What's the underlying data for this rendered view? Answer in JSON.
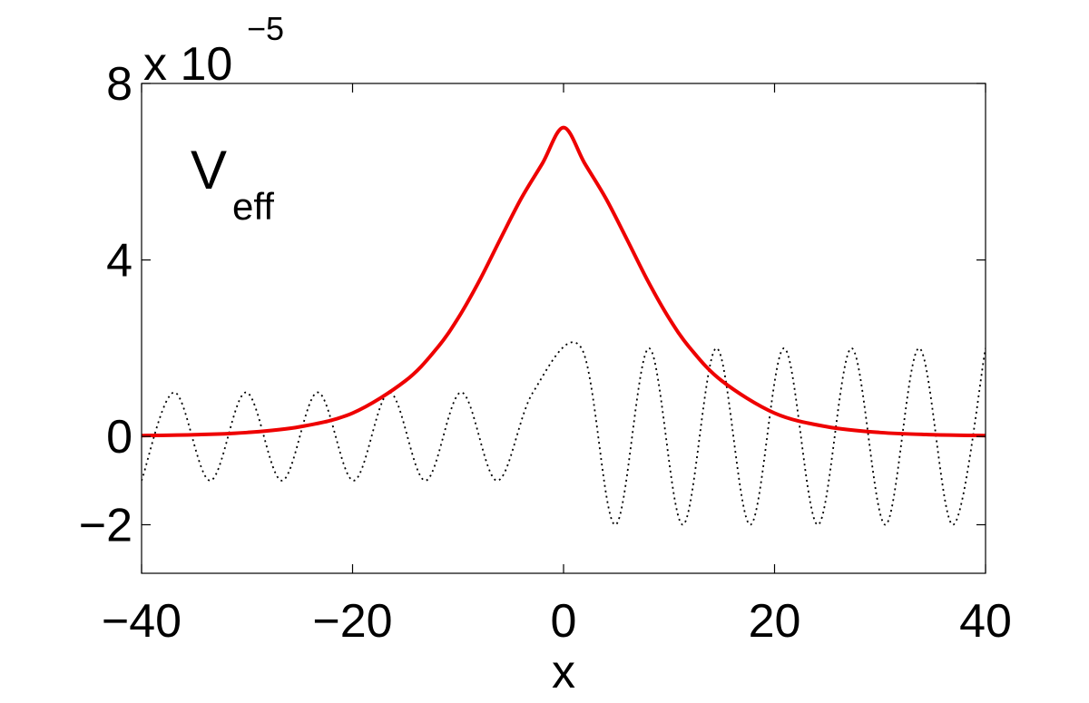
{
  "chart_data": {
    "type": "line",
    "xlabel": "x",
    "ylabel": "",
    "title": "",
    "y_exponent": {
      "base": "x 10",
      "power": "−5"
    },
    "xlim": [
      -40,
      40
    ],
    "ylim": [
      -3.1,
      8
    ],
    "x_ticks": [
      {
        "value": -40,
        "label": "−40"
      },
      {
        "value": -20,
        "label": "−20"
      },
      {
        "value": 0,
        "label": "0"
      },
      {
        "value": 20,
        "label": "20"
      },
      {
        "value": 40,
        "label": "40"
      }
    ],
    "y_ticks": [
      {
        "value": -2,
        "label": "−2"
      },
      {
        "value": 0,
        "label": "0"
      },
      {
        "value": 4,
        "label": "4"
      },
      {
        "value": 8,
        "label": "8"
      }
    ],
    "annotation": {
      "main": "V",
      "sub": "eff",
      "x": -35,
      "y": 6
    },
    "grid": false,
    "series": [
      {
        "style": "solid",
        "color": "#ee0000",
        "x": [
          -40,
          -35,
          -30,
          -25,
          -20,
          -15,
          -12,
          -10,
          -8,
          -6,
          -4,
          -2,
          0,
          2,
          4,
          6,
          8,
          10,
          12,
          15,
          20,
          25,
          30,
          35,
          40
        ],
        "y": [
          0.02,
          0.04,
          0.09,
          0.22,
          0.53,
          1.26,
          2.0,
          2.68,
          3.52,
          4.47,
          5.4,
          6.19,
          7.0,
          6.19,
          5.4,
          4.47,
          3.52,
          2.68,
          2.0,
          1.26,
          0.53,
          0.22,
          0.09,
          0.04,
          0.02
        ]
      },
      {
        "style": "dotted",
        "color": "#000000",
        "x": [
          -40,
          -36.9,
          -33.5,
          -30.1,
          -26.7,
          -23.3,
          -19.9,
          -16.5,
          -13.1,
          -9.7,
          -6.3,
          -2.9,
          1.7,
          4.9,
          8.1,
          11.3,
          14.5,
          17.7,
          20.9,
          24.1,
          27.3,
          30.5,
          33.7,
          36.9,
          40
        ],
        "y": [
          -1.0,
          1.0,
          -1.0,
          1.0,
          -1.0,
          1.0,
          -1.0,
          1.0,
          -1.0,
          1.0,
          -1.0,
          1.0,
          2.0,
          -2.0,
          2.0,
          -2.0,
          2.0,
          -2.0,
          2.0,
          -2.0,
          2.0,
          -2.0,
          2.0,
          -2.0,
          2.0
        ]
      }
    ]
  }
}
